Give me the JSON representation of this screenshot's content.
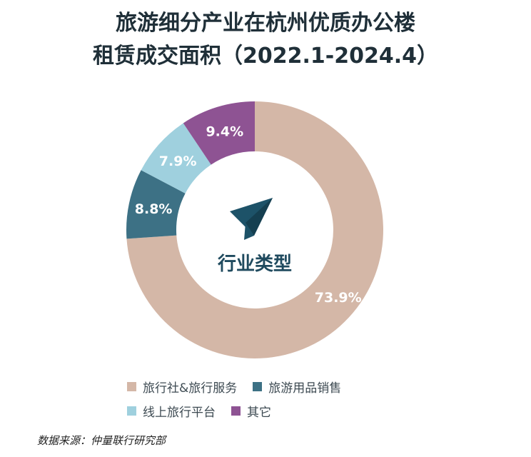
{
  "title_line1": "旅游细分产业在杭州优质办公楼",
  "title_line2": "租赁成交面积（2022.1-2024.4）",
  "center_label": "行业类型",
  "center_icon": "paper-plane-icon",
  "source": "数据来源：仲量联行研究部",
  "chart_data": {
    "type": "pie",
    "donut": true,
    "start_at": "top",
    "direction": "clockwise",
    "categories": [
      "旅行社&旅行服务",
      "旅游用品销售",
      "线上旅行平台",
      "其它"
    ],
    "values": [
      73.9,
      8.8,
      7.9,
      9.4
    ],
    "data_labels": [
      "73.9%",
      "8.8%",
      "7.9%",
      "9.4%"
    ],
    "colors": [
      "#d4b7a7",
      "#3d7185",
      "#9fd0de",
      "#8e5393"
    ],
    "legend_placement": "bottom"
  }
}
